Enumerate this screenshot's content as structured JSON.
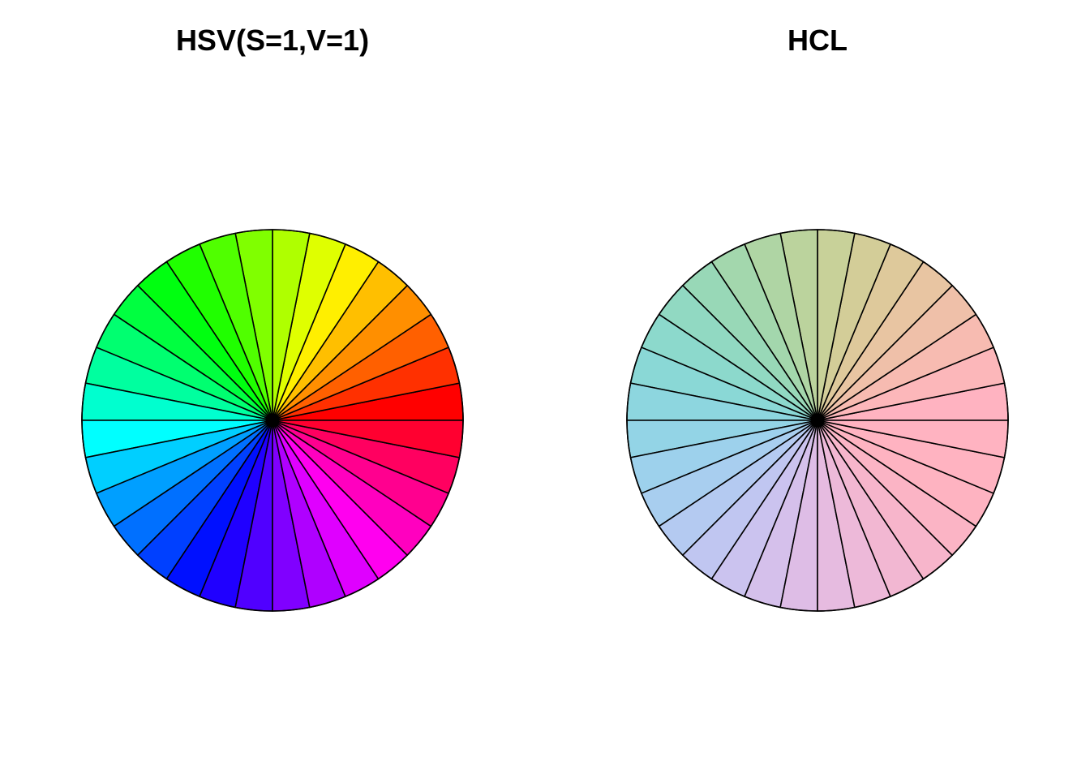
{
  "chart_data": [
    {
      "type": "pie",
      "title": "HSV(S=1,V=1)",
      "slice_count": 32,
      "values": [
        1,
        1,
        1,
        1,
        1,
        1,
        1,
        1,
        1,
        1,
        1,
        1,
        1,
        1,
        1,
        1,
        1,
        1,
        1,
        1,
        1,
        1,
        1,
        1,
        1,
        1,
        1,
        1,
        1,
        1,
        1,
        1
      ],
      "start_angle_deg": 0,
      "direction": "counterclockwise",
      "color_space": "HSV",
      "saturation": 1,
      "value": 1,
      "colors": [
        "#ff0000",
        "#ff3000",
        "#ff6000",
        "#ff8f00",
        "#ffbf00",
        "#ffef00",
        "#dfff00",
        "#afff00",
        "#80ff00",
        "#50ff00",
        "#20ff00",
        "#00ff10",
        "#00ff40",
        "#00ff70",
        "#00ff9f",
        "#00ffcf",
        "#00ffff",
        "#00cfff",
        "#009fff",
        "#0070ff",
        "#0040ff",
        "#0010ff",
        "#2000ff",
        "#5000ff",
        "#8000ff",
        "#af00ff",
        "#df00ff",
        "#ff00ef",
        "#ff00bf",
        "#ff008f",
        "#ff0060",
        "#ff0030"
      ]
    },
    {
      "type": "pie",
      "title": "HCL",
      "slice_count": 32,
      "values": [
        1,
        1,
        1,
        1,
        1,
        1,
        1,
        1,
        1,
        1,
        1,
        1,
        1,
        1,
        1,
        1,
        1,
        1,
        1,
        1,
        1,
        1,
        1,
        1,
        1,
        1,
        1,
        1,
        1,
        1,
        1,
        1
      ],
      "start_angle_deg": 0,
      "direction": "counterclockwise",
      "color_space": "HCL",
      "colors": [
        "#ffb3c1",
        "#fcb7ba",
        "#f7bbb1",
        "#efc0a9",
        "#e8c5a2",
        "#dec99b",
        "#d3cd98",
        "#c8d199",
        "#bbd39d",
        "#afd5a4",
        "#a3d7ad",
        "#98d8b7",
        "#91d9c2",
        "#8cd9cc",
        "#8ad8d6",
        "#8dd6df",
        "#93d4e6",
        "#9dd1ec",
        "#a8ceef",
        "#b4caf1",
        "#c0c6f1",
        "#cbc3ef",
        "#d5c0eb",
        "#debde6",
        "#e6bbe0",
        "#edb9d9",
        "#f2b7d2",
        "#f7b5cb",
        "#fbb4c5",
        "#feb3c1",
        "#ffb3c1",
        "#ffb3c1"
      ]
    }
  ]
}
